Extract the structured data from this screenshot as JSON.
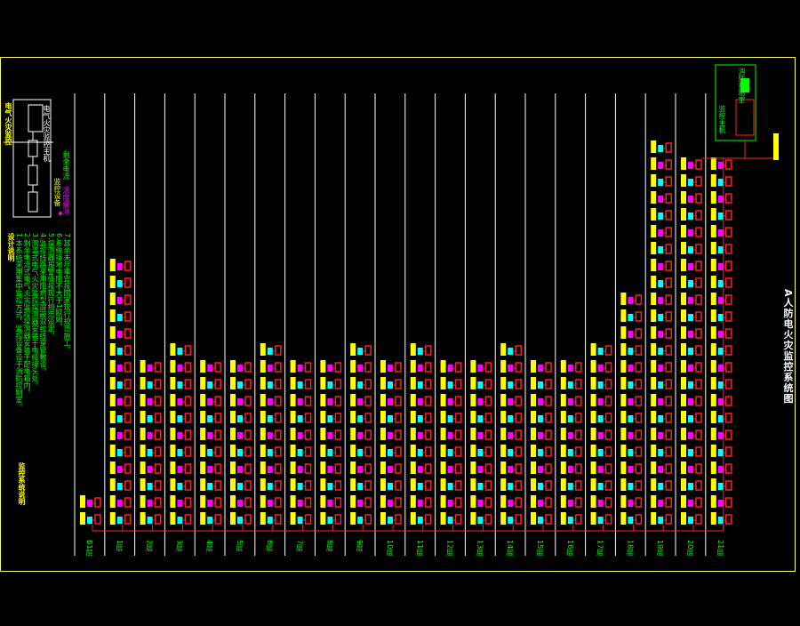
{
  "colors": {
    "background": "#000000",
    "frame": "#ffff66",
    "riser": "#ffffff",
    "bus": "#ff2222",
    "device_yellow": "#ffff00",
    "device_cyan": "#00ffff",
    "device_magenta": "#ff00ff",
    "device_red": "#ff2020",
    "text_green": "#00ff00",
    "text_yellow": "#ffff00"
  },
  "drawing": {
    "title": "A人防电火灾监控系统图"
  },
  "legend": {
    "title": "电气火灾监控",
    "box_label": "电气火灾监控主机",
    "items": [
      "监控设备",
      "剩余电流",
      "温度探测"
    ]
  },
  "notes": {
    "title": "设计说明",
    "lines": [
      "1.本系统采用集中监控方式，监控设备设于消防控制室。",
      "2.剩余电流式电气火灾监控探测器安装于配电箱内。",
      "3.测温式电气火灾监控探测器安装于电缆接头处。",
      "4.监控线路采用阻燃型屏蔽双绞线穿管敷设。",
      "5.探测器报警值按现行规范设定。",
      "6.系统接地电阻不大于1欧姆。",
      "7.其余未尽事宜按国家现行规范施工。"
    ],
    "footer": "监控系统说明"
  },
  "host_box": {
    "line1": "监控主机",
    "line2": "消防控制室"
  },
  "risers": [
    {
      "label": "B1层",
      "stack": 2
    },
    {
      "label": "1层",
      "stack": 16
    },
    {
      "label": "2层",
      "stack": 10
    },
    {
      "label": "3层",
      "stack": 11
    },
    {
      "label": "4层",
      "stack": 10
    },
    {
      "label": "5层",
      "stack": 10
    },
    {
      "label": "6层",
      "stack": 11
    },
    {
      "label": "7层",
      "stack": 10
    },
    {
      "label": "8层",
      "stack": 10
    },
    {
      "label": "9层",
      "stack": 11
    },
    {
      "label": "10层",
      "stack": 10
    },
    {
      "label": "11层",
      "stack": 11
    },
    {
      "label": "12层",
      "stack": 10
    },
    {
      "label": "13层",
      "stack": 10
    },
    {
      "label": "14层",
      "stack": 11
    },
    {
      "label": "15层",
      "stack": 10
    },
    {
      "label": "16层",
      "stack": 10
    },
    {
      "label": "17层",
      "stack": 11
    },
    {
      "label": "18层",
      "stack": 14
    },
    {
      "label": "19层",
      "stack": 23
    },
    {
      "label": "20层",
      "stack": 22
    },
    {
      "label": "21层",
      "stack": 22
    }
  ]
}
